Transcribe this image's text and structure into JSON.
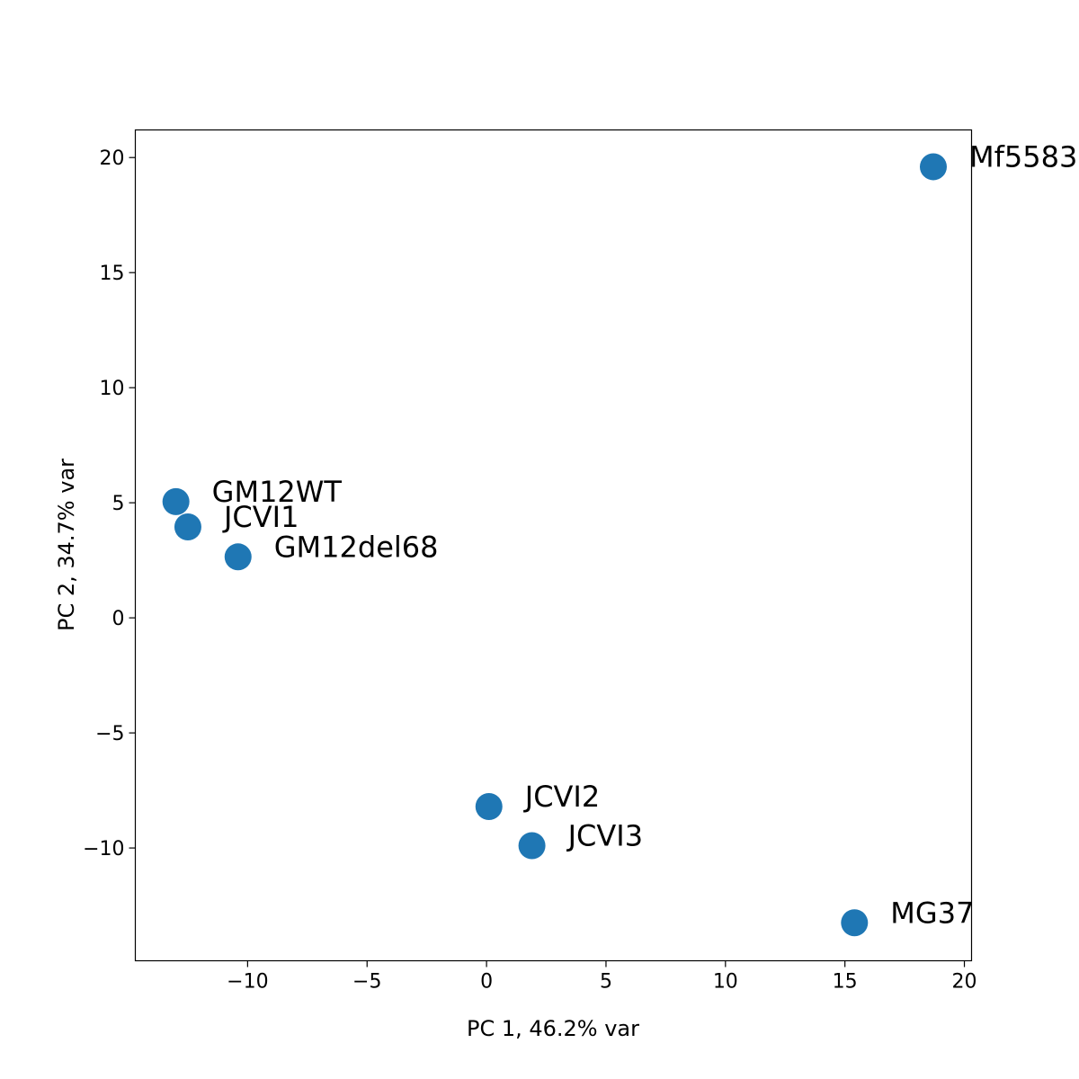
{
  "chart_data": {
    "type": "scatter",
    "title": "",
    "xlabel": "PC 1, 46.2% var",
    "ylabel": "PC 2, 34.7% var",
    "xlim": [
      -14.7,
      20.3
    ],
    "ylim": [
      -14.9,
      21.2
    ],
    "xticks": [
      -10,
      -5,
      0,
      5,
      10,
      15,
      20
    ],
    "yticks": [
      -10,
      -5,
      0,
      5,
      10,
      15,
      20
    ],
    "xtick_labels": [
      "−10",
      "−5",
      "0",
      "5",
      "10",
      "15",
      "20"
    ],
    "ytick_labels": [
      "−10",
      "−5",
      "0",
      "5",
      "10",
      "15",
      "20"
    ],
    "grid": false,
    "marker_color": "#1f77b4",
    "points": [
      {
        "label": "GM12WT",
        "x": -13.0,
        "y": 5.05
      },
      {
        "label": "JCVI1",
        "x": -12.5,
        "y": 3.95
      },
      {
        "label": "GM12del68",
        "x": -10.4,
        "y": 2.65
      },
      {
        "label": "JCVI2",
        "x": 0.1,
        "y": -8.2
      },
      {
        "label": "JCVI3",
        "x": 1.9,
        "y": -9.9
      },
      {
        "label": "MG37",
        "x": 15.4,
        "y": -13.25
      },
      {
        "label": "Mf5583",
        "x": 18.7,
        "y": 19.6
      }
    ]
  }
}
